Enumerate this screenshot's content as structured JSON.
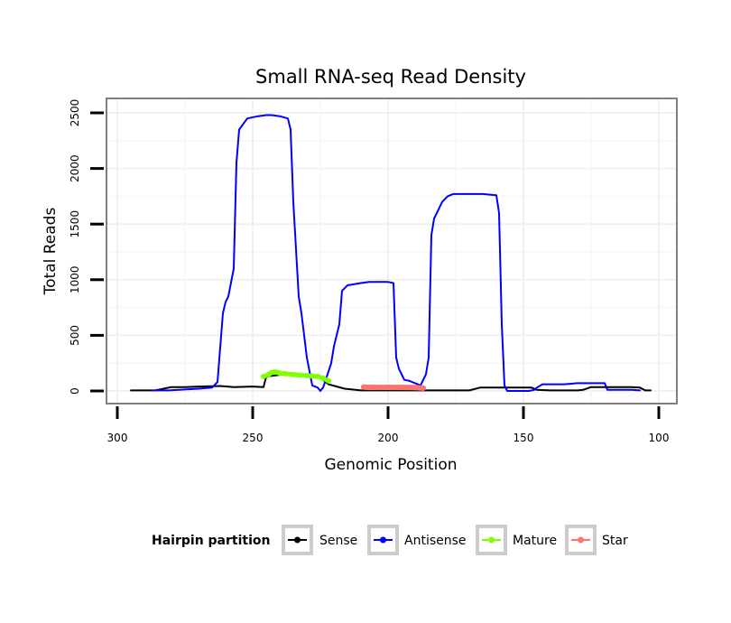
{
  "chart_data": {
    "type": "line",
    "title": "Small RNA-seq Read Density",
    "xlabel": "Genomic Position",
    "ylabel": "Total Reads",
    "xlim": [
      300,
      100
    ],
    "ylim": [
      0,
      2500
    ],
    "x_ticks": [
      "300",
      "250",
      "200",
      "150",
      "100"
    ],
    "y_ticks": [
      "0",
      "500",
      "1000",
      "1500",
      "2000",
      "2500"
    ],
    "grid": true,
    "legend": {
      "title": "Hairpin partition",
      "position": "bottom",
      "entries": [
        "Sense",
        "Antisense",
        "Mature",
        "Star"
      ]
    },
    "series": [
      {
        "name": "Sense",
        "color": "#000000",
        "x": [
          295,
          286,
          280,
          275,
          270,
          262,
          257,
          250,
          246,
          245,
          240,
          230,
          226,
          222,
          216,
          210,
          200,
          190,
          186,
          180,
          170,
          166,
          160,
          150,
          147,
          145,
          140,
          130,
          128,
          125,
          120,
          110,
          107,
          105,
          103
        ],
        "y": [
          5,
          5,
          35,
          35,
          40,
          45,
          35,
          40,
          35,
          130,
          145,
          150,
          140,
          60,
          20,
          5,
          5,
          5,
          5,
          5,
          5,
          30,
          30,
          30,
          30,
          10,
          5,
          5,
          10,
          35,
          35,
          35,
          30,
          5,
          5
        ]
      },
      {
        "name": "Antisense",
        "color": "#0000ff",
        "x": [
          287,
          281,
          270,
          265,
          263,
          261,
          260,
          259,
          257,
          256,
          255,
          252,
          248,
          245,
          243,
          240,
          237,
          236,
          235,
          233,
          232,
          230,
          228,
          226,
          225,
          224,
          223,
          221,
          220,
          218,
          217,
          215,
          210,
          207,
          205,
          200,
          198,
          197,
          196,
          195,
          194,
          192,
          190,
          188,
          186,
          185,
          184,
          183,
          182,
          180,
          178,
          176,
          170,
          165,
          160,
          159,
          158,
          157,
          156,
          155,
          150,
          148,
          146,
          145,
          143,
          141,
          135,
          130,
          125,
          120,
          119,
          110,
          107
        ],
        "y": [
          5,
          5,
          20,
          30,
          80,
          700,
          800,
          850,
          1100,
          2050,
          2350,
          2450,
          2470,
          2480,
          2480,
          2470,
          2450,
          2350,
          1700,
          850,
          700,
          300,
          50,
          30,
          0,
          30,
          100,
          250,
          400,
          600,
          900,
          950,
          970,
          980,
          980,
          980,
          970,
          300,
          200,
          150,
          100,
          90,
          70,
          50,
          150,
          300,
          1400,
          1550,
          1600,
          1700,
          1750,
          1770,
          1770,
          1770,
          1760,
          1600,
          600,
          50,
          0,
          0,
          0,
          0,
          10,
          30,
          60,
          60,
          60,
          70,
          70,
          70,
          10,
          10,
          5
        ]
      },
      {
        "name": "Mature",
        "color": "#7fff00",
        "x": [
          246,
          244,
          243,
          242,
          241,
          240,
          238,
          235,
          233,
          230,
          228,
          226,
          224,
          222
        ],
        "y": [
          130,
          150,
          165,
          170,
          168,
          160,
          155,
          148,
          143,
          138,
          135,
          130,
          115,
          90
        ]
      },
      {
        "name": "Star",
        "color": "#f8766d",
        "x": [
          209,
          207,
          205,
          200,
          195,
          190,
          187
        ],
        "y": [
          35,
          32,
          32,
          32,
          32,
          30,
          25
        ]
      }
    ]
  }
}
